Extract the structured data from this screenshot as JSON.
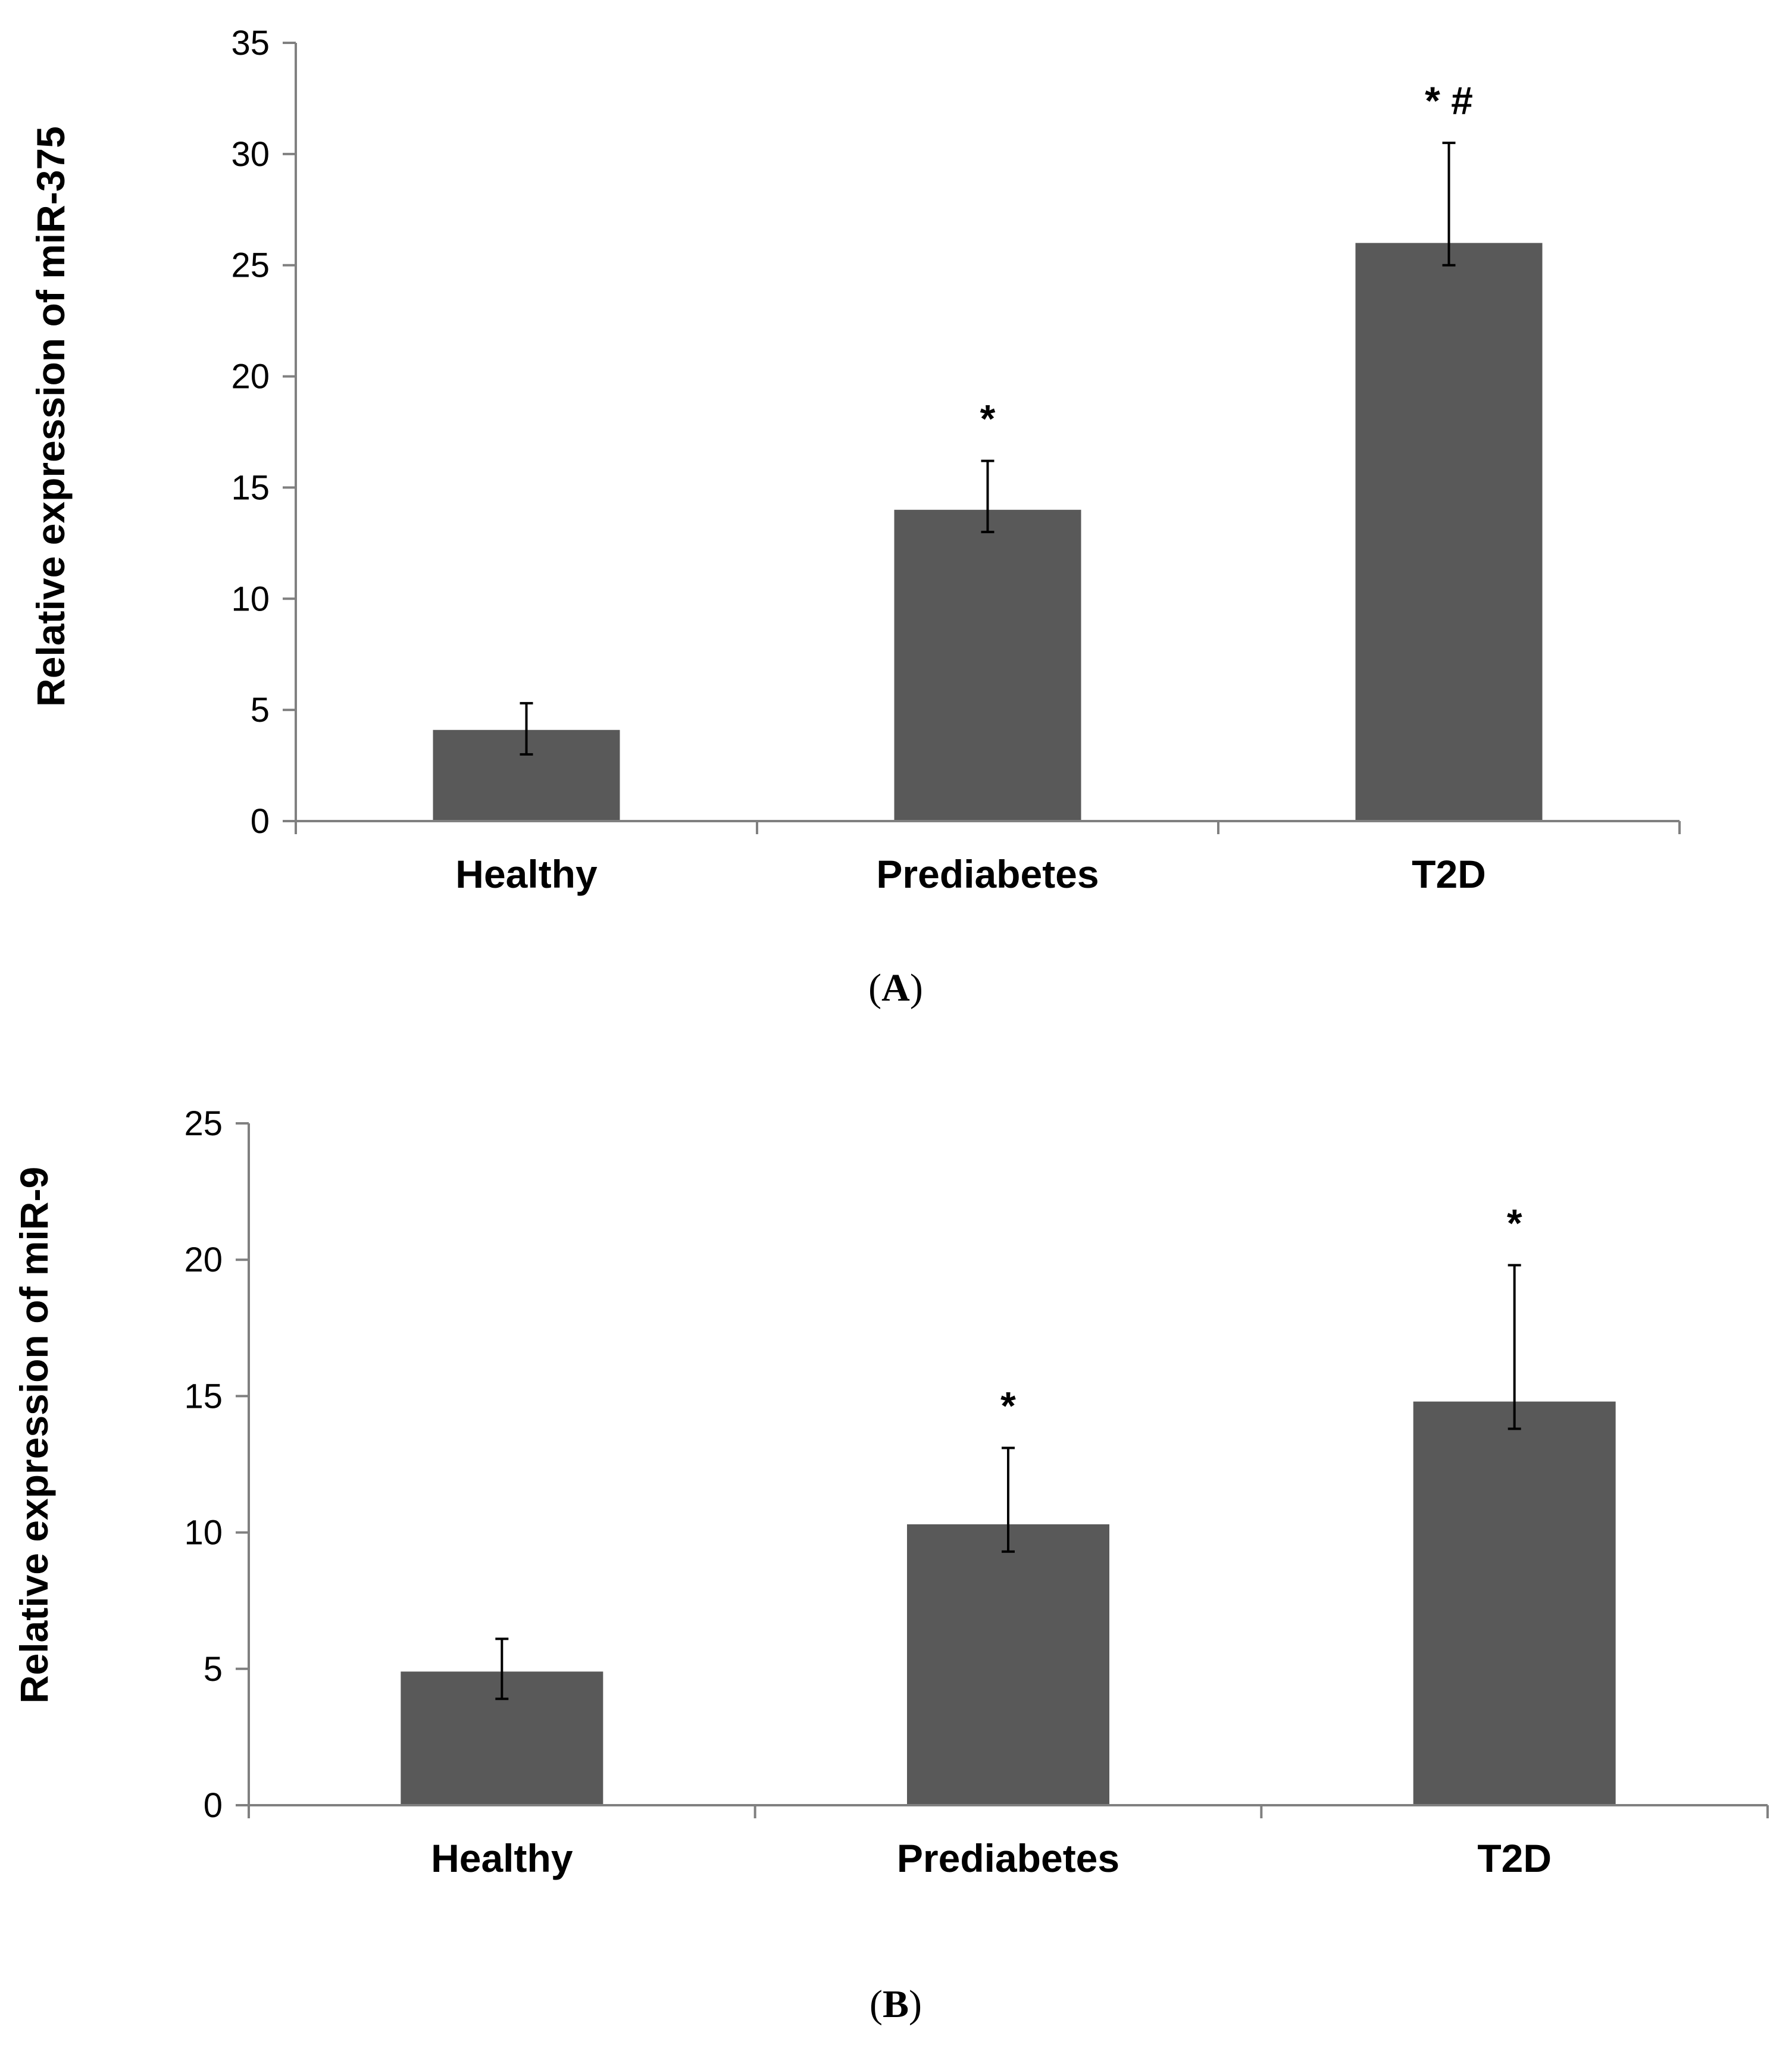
{
  "chart_data": [
    {
      "type": "bar",
      "panel_label": "A",
      "title": "",
      "xlabel": "",
      "ylabel": "Relative expression of miR-375",
      "categories": [
        "Healthy",
        "Prediabetes",
        "T2D"
      ],
      "values": [
        4.1,
        14.0,
        26.0
      ],
      "error_upper": [
        5.3,
        16.2,
        30.5
      ],
      "error_lower": [
        3.0,
        13.0,
        25.0
      ],
      "annotations": [
        "",
        "*",
        "* #"
      ],
      "ylim": [
        0,
        35
      ],
      "yticks": [
        0,
        5,
        10,
        15,
        20,
        25,
        30,
        35
      ],
      "bar_color": "#595959",
      "grid": false,
      "legend": "none"
    },
    {
      "type": "bar",
      "panel_label": "B",
      "title": "",
      "xlabel": "",
      "ylabel": "Relative expression of miR-9",
      "categories": [
        "Healthy",
        "Prediabetes",
        "T2D"
      ],
      "values": [
        4.9,
        10.3,
        14.8
      ],
      "error_upper": [
        6.1,
        13.1,
        19.8
      ],
      "error_lower": [
        3.9,
        9.3,
        13.8
      ],
      "annotations": [
        "",
        "*",
        "*"
      ],
      "ylim": [
        0,
        25
      ],
      "yticks": [
        0,
        5,
        10,
        15,
        20,
        25
      ],
      "bar_color": "#595959",
      "grid": false,
      "legend": "none"
    }
  ],
  "captions": [
    {
      "open": "(",
      "label": "A",
      "close": ")"
    },
    {
      "open": "(",
      "label": "B",
      "close": ")"
    }
  ]
}
